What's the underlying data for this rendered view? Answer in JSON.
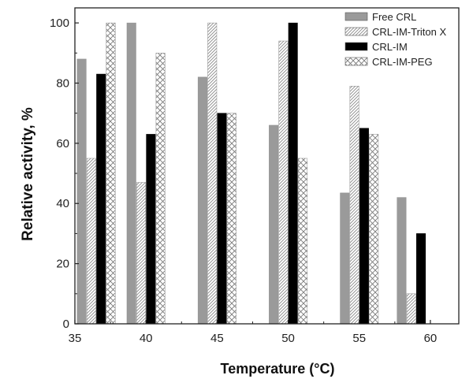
{
  "chart_data": {
    "type": "bar",
    "xlabel": "Temperature (°C)",
    "ylabel": "Relative activity, %",
    "categories": [
      36.5,
      40,
      45,
      50,
      55,
      59
    ],
    "xlim": [
      35,
      62
    ],
    "ylim": [
      0,
      105
    ],
    "x_ticks": [
      35,
      40,
      45,
      50,
      55,
      60
    ],
    "y_ticks": [
      0,
      20,
      40,
      60,
      80,
      100
    ],
    "grid": false,
    "legend_position": "top-right",
    "series": [
      {
        "name": "Free CRL",
        "values": [
          88,
          100,
          82,
          66,
          43.5,
          42
        ],
        "fill": "solid-gray",
        "color": "#9a9a9a"
      },
      {
        "name": "CRL-IM-Triton X",
        "values": [
          55,
          47,
          100,
          94,
          79,
          10
        ],
        "fill": "diagonal-hatch",
        "color": "#8a8a8a"
      },
      {
        "name": "CRL-IM",
        "values": [
          83,
          63,
          70,
          100,
          65,
          30
        ],
        "fill": "solid-black",
        "color": "#000000"
      },
      {
        "name": "CRL-IM-PEG",
        "values": [
          100,
          90,
          70,
          55,
          63,
          null
        ],
        "fill": "cross-hatch",
        "color": "#7a7a7a"
      }
    ]
  }
}
